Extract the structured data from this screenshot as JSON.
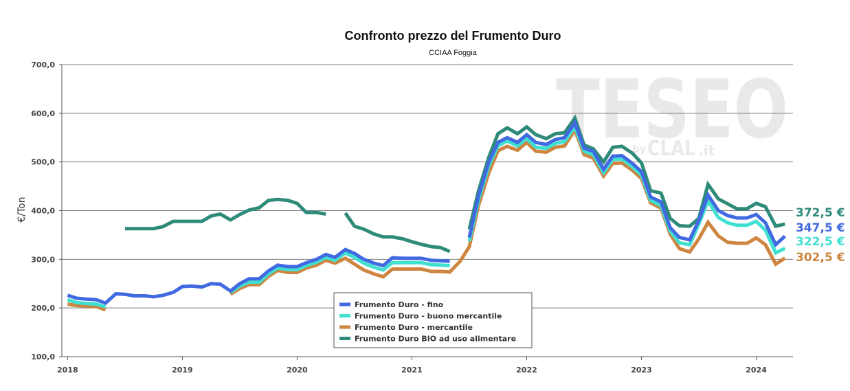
{
  "chart_data": {
    "type": "line",
    "title": "Confronto prezzo del Frumento Duro",
    "subtitle": "CCIAA Foggia",
    "ylabel": "€/Ton",
    "xlabel": "",
    "ylim": [
      100,
      700
    ],
    "xlim": [
      2017.95,
      2024.32
    ],
    "yticks": [
      "100,0",
      "200,0",
      "300,0",
      "400,0",
      "500,0",
      "600,0",
      "700,0"
    ],
    "xticks": [
      "2018",
      "2019",
      "2020",
      "2021",
      "2022",
      "2023",
      "2024"
    ],
    "grid": "horizontal",
    "legend_position": "bottom-center",
    "watermark": {
      "main": "TESEO",
      "by": "by",
      "brand": "CLAL",
      "suffix": ".it"
    },
    "series": [
      {
        "name": "Frumento Duro - fino",
        "color": "#4169E1",
        "end_label": "347,5 €",
        "points": [
          [
            2018.0,
            226
          ],
          [
            2018.08,
            220
          ],
          [
            2018.17,
            218
          ],
          [
            2018.25,
            217
          ],
          [
            2018.33,
            210
          ],
          [
            2018.42,
            229
          ],
          [
            2018.5,
            228
          ],
          [
            2018.58,
            225
          ],
          [
            2018.67,
            225
          ],
          [
            2018.75,
            223
          ],
          [
            2018.83,
            226
          ],
          [
            2018.92,
            232
          ],
          [
            2019.0,
            244
          ],
          [
            2019.08,
            245
          ],
          [
            2019.17,
            243
          ],
          [
            2019.25,
            250
          ],
          [
            2019.33,
            249
          ],
          [
            2019.42,
            235
          ],
          [
            2019.5,
            250
          ],
          [
            2019.58,
            260
          ],
          [
            2019.67,
            260
          ],
          [
            2019.75,
            276
          ],
          [
            2019.83,
            288
          ],
          [
            2019.92,
            285
          ],
          [
            2020.0,
            285
          ],
          [
            2020.08,
            293
          ],
          [
            2020.17,
            300
          ],
          [
            2020.25,
            310
          ],
          [
            2020.33,
            304
          ],
          [
            2020.42,
            320
          ],
          [
            2020.5,
            312
          ],
          [
            2020.58,
            300
          ],
          [
            2020.67,
            292
          ],
          [
            2020.75,
            287
          ],
          [
            2020.83,
            303
          ],
          [
            2020.92,
            302
          ],
          [
            2021.0,
            302
          ],
          [
            2021.08,
            302
          ],
          [
            2021.17,
            298
          ],
          [
            2021.25,
            297
          ],
          [
            2021.33,
            296
          ],
          null,
          [
            2021.5,
            345
          ],
          [
            2021.58,
            430
          ],
          [
            2021.67,
            500
          ],
          [
            2021.75,
            540
          ],
          [
            2021.83,
            550
          ],
          [
            2021.92,
            540
          ],
          [
            2022.0,
            556
          ],
          [
            2022.08,
            540
          ],
          [
            2022.17,
            536
          ],
          [
            2022.25,
            546
          ],
          [
            2022.33,
            550
          ],
          [
            2022.42,
            580
          ],
          [
            2022.5,
            528
          ],
          [
            2022.58,
            522
          ],
          [
            2022.67,
            485
          ],
          [
            2022.75,
            512
          ],
          [
            2022.83,
            513
          ],
          [
            2022.92,
            497
          ],
          [
            2023.0,
            480
          ],
          [
            2023.08,
            428
          ],
          [
            2023.17,
            418
          ],
          [
            2023.25,
            365
          ],
          [
            2023.33,
            345
          ],
          [
            2023.42,
            340
          ],
          [
            2023.5,
            380
          ],
          [
            2023.58,
            432
          ],
          [
            2023.67,
            400
          ],
          [
            2023.75,
            390
          ],
          [
            2023.83,
            385
          ],
          [
            2023.92,
            385
          ],
          [
            2024.0,
            392
          ],
          [
            2024.08,
            375
          ],
          [
            2024.17,
            330
          ],
          [
            2024.25,
            347.5
          ]
        ]
      },
      {
        "name": "Frumento Duro - buono mercantile",
        "color": "#40E0D0",
        "end_label": "322,5 €",
        "points": [
          [
            2018.0,
            217
          ],
          [
            2018.08,
            211
          ],
          [
            2018.17,
            209
          ],
          [
            2018.25,
            208
          ],
          [
            2018.33,
            202
          ],
          null,
          [
            2019.42,
            232
          ],
          [
            2019.5,
            245
          ],
          [
            2019.58,
            253
          ],
          [
            2019.67,
            253
          ],
          [
            2019.75,
            270
          ],
          [
            2019.83,
            282
          ],
          [
            2019.92,
            279
          ],
          [
            2020.0,
            279
          ],
          [
            2020.08,
            287
          ],
          [
            2020.17,
            294
          ],
          [
            2020.25,
            304
          ],
          [
            2020.33,
            298
          ],
          [
            2020.42,
            313
          ],
          [
            2020.5,
            304
          ],
          [
            2020.58,
            292
          ],
          [
            2020.67,
            284
          ],
          [
            2020.75,
            278
          ],
          [
            2020.83,
            293
          ],
          [
            2020.92,
            293
          ],
          [
            2021.0,
            293
          ],
          [
            2021.08,
            293
          ],
          [
            2021.17,
            289
          ],
          [
            2021.25,
            288
          ],
          [
            2021.33,
            287
          ],
          null,
          [
            2021.5,
            337
          ],
          [
            2021.58,
            422
          ],
          [
            2021.67,
            492
          ],
          [
            2021.75,
            533
          ],
          [
            2021.83,
            543
          ],
          [
            2021.92,
            533
          ],
          [
            2022.0,
            548
          ],
          [
            2022.08,
            530
          ],
          [
            2022.17,
            528
          ],
          [
            2022.25,
            538
          ],
          [
            2022.33,
            542
          ],
          [
            2022.42,
            572
          ],
          [
            2022.5,
            522
          ],
          [
            2022.58,
            515
          ],
          [
            2022.67,
            478
          ],
          [
            2022.75,
            505
          ],
          [
            2022.83,
            506
          ],
          [
            2022.92,
            490
          ],
          [
            2023.0,
            473
          ],
          [
            2023.08,
            421
          ],
          [
            2023.17,
            410
          ],
          [
            2023.25,
            358
          ],
          [
            2023.33,
            334
          ],
          [
            2023.42,
            330
          ],
          [
            2023.5,
            372
          ],
          [
            2023.58,
            420
          ],
          [
            2023.67,
            386
          ],
          [
            2023.75,
            375
          ],
          [
            2023.83,
            370
          ],
          [
            2023.92,
            370
          ],
          [
            2024.0,
            378
          ],
          [
            2024.08,
            360
          ],
          [
            2024.17,
            313
          ],
          [
            2024.25,
            322.5
          ]
        ]
      },
      {
        "name": "Frumento Duro - mercantile",
        "color": "#CD853F",
        "end_label": "302,5 €",
        "points": [
          [
            2018.0,
            208
          ],
          [
            2018.08,
            205
          ],
          [
            2018.17,
            204
          ],
          [
            2018.25,
            203
          ],
          [
            2018.33,
            196
          ],
          null,
          [
            2019.42,
            228
          ],
          [
            2019.5,
            240
          ],
          [
            2019.58,
            248
          ],
          [
            2019.67,
            248
          ],
          [
            2019.75,
            265
          ],
          [
            2019.83,
            277
          ],
          [
            2019.92,
            273
          ],
          [
            2020.0,
            273
          ],
          [
            2020.08,
            282
          ],
          [
            2020.17,
            288
          ],
          [
            2020.25,
            298
          ],
          [
            2020.33,
            292
          ],
          [
            2020.42,
            302
          ],
          [
            2020.5,
            290
          ],
          [
            2020.58,
            278
          ],
          [
            2020.67,
            270
          ],
          [
            2020.75,
            264
          ],
          [
            2020.83,
            280
          ],
          [
            2020.92,
            280
          ],
          [
            2021.0,
            280
          ],
          [
            2021.08,
            280
          ],
          [
            2021.17,
            275
          ],
          [
            2021.25,
            275
          ],
          [
            2021.33,
            274
          ],
          [
            2021.42,
            296
          ],
          [
            2021.5,
            326
          ],
          [
            2021.58,
            410
          ],
          [
            2021.67,
            478
          ],
          [
            2021.75,
            523
          ],
          [
            2021.83,
            532
          ],
          [
            2021.92,
            524
          ],
          [
            2022.0,
            540
          ],
          [
            2022.08,
            522
          ],
          [
            2022.17,
            520
          ],
          [
            2022.25,
            530
          ],
          [
            2022.33,
            533
          ],
          [
            2022.42,
            566
          ],
          [
            2022.5,
            515
          ],
          [
            2022.58,
            508
          ],
          [
            2022.67,
            471
          ],
          [
            2022.75,
            497
          ],
          [
            2022.83,
            498
          ],
          [
            2022.92,
            483
          ],
          [
            2023.0,
            466
          ],
          [
            2023.08,
            416
          ],
          [
            2023.17,
            405
          ],
          [
            2023.25,
            352
          ],
          [
            2023.33,
            322
          ],
          [
            2023.42,
            315
          ],
          [
            2023.5,
            342
          ],
          [
            2023.58,
            376
          ],
          [
            2023.67,
            348
          ],
          [
            2023.75,
            335
          ],
          [
            2023.83,
            333
          ],
          [
            2023.92,
            333
          ],
          [
            2024.0,
            344
          ],
          [
            2024.08,
            330
          ],
          [
            2024.17,
            290
          ],
          [
            2024.25,
            302.5
          ]
        ]
      },
      {
        "name": "Frumento Duro BIO ad uso alimentare",
        "color": "#2E8B7A",
        "end_label": "372,5 €",
        "points": [
          [
            2018.5,
            363
          ],
          [
            2018.58,
            363
          ],
          [
            2018.67,
            363
          ],
          [
            2018.75,
            363
          ],
          [
            2018.83,
            367
          ],
          [
            2018.92,
            378
          ],
          [
            2019.0,
            378
          ],
          [
            2019.08,
            378
          ],
          [
            2019.17,
            378
          ],
          [
            2019.25,
            389
          ],
          [
            2019.33,
            393
          ],
          [
            2019.42,
            381
          ],
          [
            2019.5,
            392
          ],
          [
            2019.58,
            401
          ],
          [
            2019.67,
            406
          ],
          [
            2019.75,
            421
          ],
          [
            2019.83,
            423
          ],
          [
            2019.92,
            421
          ],
          [
            2020.0,
            415
          ],
          [
            2020.08,
            396
          ],
          [
            2020.17,
            396
          ],
          [
            2020.25,
            393
          ],
          null,
          [
            2020.42,
            395
          ],
          [
            2020.5,
            368
          ],
          [
            2020.58,
            362
          ],
          [
            2020.67,
            352
          ],
          [
            2020.75,
            346
          ],
          [
            2020.83,
            346
          ],
          [
            2020.92,
            342
          ],
          [
            2021.0,
            336
          ],
          [
            2021.08,
            331
          ],
          [
            2021.17,
            326
          ],
          [
            2021.25,
            324
          ],
          [
            2021.33,
            316
          ],
          null,
          [
            2021.5,
            362
          ],
          [
            2021.58,
            440
          ],
          [
            2021.67,
            510
          ],
          [
            2021.75,
            558
          ],
          [
            2021.83,
            570
          ],
          [
            2021.92,
            558
          ],
          [
            2022.0,
            572
          ],
          [
            2022.08,
            556
          ],
          [
            2022.17,
            548
          ],
          [
            2022.25,
            558
          ],
          [
            2022.33,
            560
          ],
          [
            2022.42,
            590
          ],
          [
            2022.5,
            535
          ],
          [
            2022.58,
            527
          ],
          [
            2022.67,
            500
          ],
          [
            2022.75,
            530
          ],
          [
            2022.83,
            532
          ],
          [
            2022.92,
            518
          ],
          [
            2023.0,
            498
          ],
          [
            2023.08,
            441
          ],
          [
            2023.17,
            436
          ],
          [
            2023.25,
            384
          ],
          [
            2023.33,
            369
          ],
          [
            2023.42,
            368
          ],
          [
            2023.5,
            384
          ],
          [
            2023.58,
            454
          ],
          [
            2023.67,
            424
          ],
          [
            2023.75,
            414
          ],
          [
            2023.83,
            404
          ],
          [
            2023.92,
            404
          ],
          [
            2024.0,
            415
          ],
          [
            2024.08,
            408
          ],
          [
            2024.17,
            368
          ],
          [
            2024.25,
            372.5
          ]
        ]
      }
    ]
  }
}
